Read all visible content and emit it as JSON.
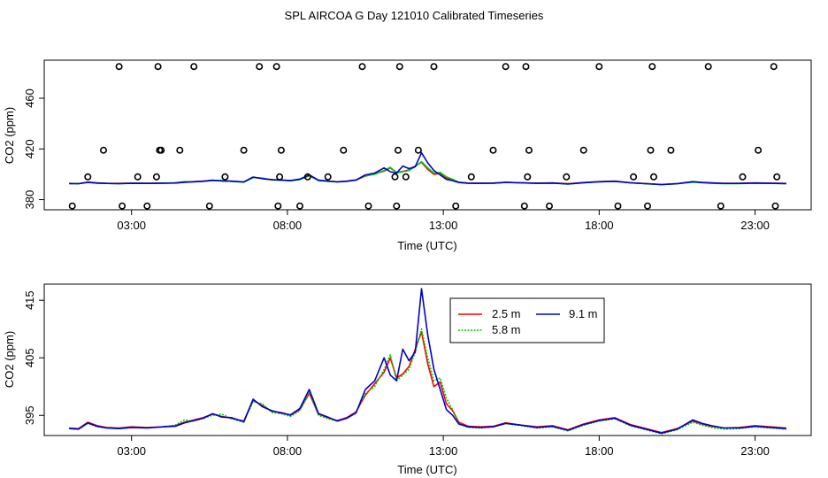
{
  "figure_title": "SPL AIRCOA G  Day 121010  Calibrated Timeseries",
  "chart_data": [
    {
      "type": "scatter+line",
      "panel": "top",
      "xlabel": "Time (UTC)",
      "ylabel": "CO2 (ppm)",
      "xlim": [
        0.2,
        24.8
      ],
      "ylim": [
        372,
        490
      ],
      "xticks": [
        3,
        8,
        13,
        18,
        23
      ],
      "xtick_labels": [
        "03:00",
        "08:00",
        "13:00",
        "18:00",
        "23:00"
      ],
      "yticks": [
        380,
        420,
        460
      ],
      "ytick_labels": [
        "380",
        "420",
        "460"
      ],
      "markers": {
        "name": "discrete samples",
        "x": [
          1.1,
          1.6,
          2.1,
          2.6,
          2.7,
          3.2,
          3.5,
          3.8,
          3.85,
          3.9,
          3.95,
          4.55,
          5.0,
          5.5,
          6.0,
          6.6,
          7.1,
          7.65,
          7.7,
          7.75,
          7.8,
          8.4,
          8.65,
          9.3,
          9.8,
          10.4,
          10.6,
          11.45,
          11.5,
          11.55,
          11.6,
          11.8,
          12.2,
          12.7,
          13.4,
          13.9,
          14.6,
          15.0,
          15.6,
          15.65,
          15.7,
          15.75,
          16.4,
          16.95,
          17.5,
          18.0,
          18.6,
          19.1,
          19.55,
          19.65,
          19.7,
          19.75,
          20.3,
          21.5,
          21.9,
          22.6,
          23.1,
          23.6,
          23.65,
          23.7
        ],
        "y": [
          375,
          398,
          419,
          485,
          375,
          398,
          375,
          398,
          485,
          419,
          419,
          419,
          485,
          375,
          398,
          419,
          485,
          485,
          375,
          398,
          419,
          375,
          398,
          398,
          419,
          485,
          375,
          398,
          375,
          419,
          485,
          398,
          419,
          485,
          375,
          398,
          419,
          485,
          375,
          485,
          398,
          419,
          375,
          398,
          419,
          485,
          375,
          398,
          375,
          419,
          485,
          398,
          419,
          485,
          375,
          398,
          419,
          485,
          375,
          398
        ]
      },
      "series": [
        {
          "name": "2.5 m",
          "color": "#ff0000"
        },
        {
          "name": "5.8 m",
          "color": "#00cc00"
        },
        {
          "name": "9.1 m",
          "color": "#0000cc"
        }
      ]
    },
    {
      "type": "line",
      "panel": "bottom",
      "xlabel": "Time (UTC)",
      "ylabel": "CO2 (ppm)",
      "xlim": [
        0.2,
        24.8
      ],
      "ylim": [
        391.5,
        417.8
      ],
      "xticks": [
        3,
        8,
        13,
        18,
        23
      ],
      "xtick_labels": [
        "03:00",
        "08:00",
        "13:00",
        "18:00",
        "23:00"
      ],
      "yticks": [
        395,
        405,
        415
      ],
      "ytick_labels": [
        "395",
        "405",
        "415"
      ],
      "legend": {
        "placement": "top-center",
        "entries": [
          "2.5 m",
          "9.1 m",
          "5.8 m"
        ]
      },
      "series": [
        {
          "name": "2.5 m",
          "color": "#ff0000",
          "x": [
            1.0,
            1.3,
            1.6,
            1.9,
            2.2,
            2.6,
            3.0,
            3.5,
            4.0,
            4.4,
            4.7,
            5.0,
            5.3,
            5.6,
            5.9,
            6.2,
            6.6,
            6.9,
            7.2,
            7.5,
            7.8,
            8.1,
            8.4,
            8.7,
            9.0,
            9.3,
            9.6,
            9.9,
            10.2,
            10.5,
            10.8,
            11.1,
            11.3,
            11.5,
            11.7,
            11.9,
            12.1,
            12.3,
            12.5,
            12.7,
            12.9,
            13.1,
            13.3,
            13.5,
            13.8,
            14.2,
            14.6,
            15.0,
            15.5,
            16.0,
            16.5,
            17.0,
            17.5,
            18.0,
            18.5,
            19.0,
            19.5,
            20.0,
            20.5,
            21.0,
            21.3,
            21.6,
            22.0,
            22.5,
            23.0,
            23.5,
            24.0
          ],
          "y": [
            392.8,
            392.7,
            393.8,
            393.2,
            392.9,
            392.8,
            393.0,
            392.9,
            393.0,
            393.2,
            393.8,
            394.2,
            394.6,
            395.2,
            394.8,
            394.5,
            394.0,
            397.6,
            396.7,
            395.7,
            395.5,
            395.0,
            396.0,
            398.8,
            395.2,
            394.6,
            394.1,
            394.6,
            395.6,
            398.5,
            400.5,
            402.5,
            405.0,
            401.5,
            402.2,
            403.5,
            406.5,
            409.5,
            404.0,
            400.0,
            400.8,
            397.0,
            395.8,
            393.8,
            393.1,
            393.0,
            393.1,
            393.7,
            393.3,
            393.0,
            393.2,
            392.5,
            393.5,
            394.2,
            394.6,
            393.4,
            392.7,
            392.0,
            392.7,
            394.0,
            393.5,
            393.1,
            392.8,
            392.9,
            393.2,
            393.0,
            392.8
          ]
        },
        {
          "name": "5.8 m",
          "color": "#00cc00",
          "x": [
            1.0,
            1.3,
            1.6,
            1.9,
            2.2,
            2.6,
            3.0,
            3.5,
            4.0,
            4.4,
            4.7,
            5.0,
            5.3,
            5.6,
            5.9,
            6.2,
            6.6,
            6.9,
            7.2,
            7.5,
            7.8,
            8.1,
            8.4,
            8.7,
            9.0,
            9.3,
            9.6,
            9.9,
            10.2,
            10.5,
            10.8,
            11.1,
            11.3,
            11.5,
            11.7,
            11.9,
            12.1,
            12.3,
            12.5,
            12.7,
            12.9,
            13.1,
            13.3,
            13.5,
            13.8,
            14.2,
            14.6,
            15.0,
            15.5,
            16.0,
            16.5,
            17.0,
            17.5,
            18.0,
            18.5,
            19.0,
            19.5,
            20.0,
            20.5,
            21.0,
            21.3,
            21.6,
            22.0,
            22.5,
            23.0,
            23.5,
            24.0
          ],
          "y": [
            392.8,
            392.6,
            393.6,
            393.0,
            392.8,
            392.7,
            392.9,
            392.8,
            393.0,
            393.3,
            394.2,
            394.0,
            394.5,
            395.0,
            395.2,
            394.4,
            393.8,
            397.4,
            397.0,
            395.5,
            395.3,
            394.8,
            395.8,
            399.0,
            395.0,
            394.4,
            394.0,
            394.5,
            395.5,
            398.8,
            400.0,
            403.0,
            405.5,
            401.0,
            402.0,
            403.0,
            406.0,
            410.0,
            405.0,
            401.0,
            401.5,
            398.0,
            396.0,
            393.6,
            392.9,
            392.8,
            393.0,
            393.6,
            393.2,
            392.8,
            393.0,
            392.3,
            393.3,
            394.0,
            394.4,
            393.2,
            392.5,
            391.8,
            392.5,
            393.8,
            393.3,
            392.9,
            392.6,
            392.7,
            393.0,
            392.8,
            392.6
          ]
        },
        {
          "name": "9.1 m",
          "color": "#0000cc",
          "x": [
            1.0,
            1.3,
            1.6,
            1.9,
            2.2,
            2.6,
            3.0,
            3.5,
            4.0,
            4.4,
            4.7,
            5.0,
            5.3,
            5.6,
            5.9,
            6.2,
            6.6,
            6.9,
            7.2,
            7.5,
            7.8,
            8.1,
            8.4,
            8.7,
            9.0,
            9.3,
            9.6,
            9.9,
            10.2,
            10.5,
            10.8,
            11.1,
            11.3,
            11.5,
            11.7,
            11.9,
            12.1,
            12.3,
            12.5,
            12.7,
            12.9,
            13.1,
            13.3,
            13.5,
            13.8,
            14.2,
            14.6,
            15.0,
            15.5,
            16.0,
            16.5,
            17.0,
            17.5,
            18.0,
            18.5,
            19.0,
            19.5,
            20.0,
            20.5,
            21.0,
            21.3,
            21.6,
            22.0,
            22.5,
            23.0,
            23.5,
            24.0
          ],
          "y": [
            392.7,
            392.6,
            393.7,
            393.1,
            392.8,
            392.7,
            392.9,
            392.8,
            393.0,
            393.1,
            393.7,
            394.1,
            394.5,
            395.3,
            394.7,
            394.6,
            393.9,
            397.8,
            396.5,
            395.8,
            395.4,
            395.1,
            396.2,
            399.5,
            395.3,
            394.7,
            394.0,
            394.5,
            395.4,
            399.5,
            401.0,
            405.0,
            402.0,
            401.0,
            406.5,
            404.5,
            406.0,
            417.0,
            409.0,
            403.0,
            399.5,
            396.0,
            395.0,
            393.5,
            393.0,
            392.9,
            393.0,
            393.6,
            393.3,
            392.9,
            393.1,
            392.4,
            393.4,
            394.1,
            394.5,
            393.3,
            392.6,
            391.9,
            392.6,
            394.2,
            393.6,
            393.2,
            392.8,
            392.8,
            393.1,
            392.9,
            392.7
          ]
        }
      ]
    }
  ]
}
